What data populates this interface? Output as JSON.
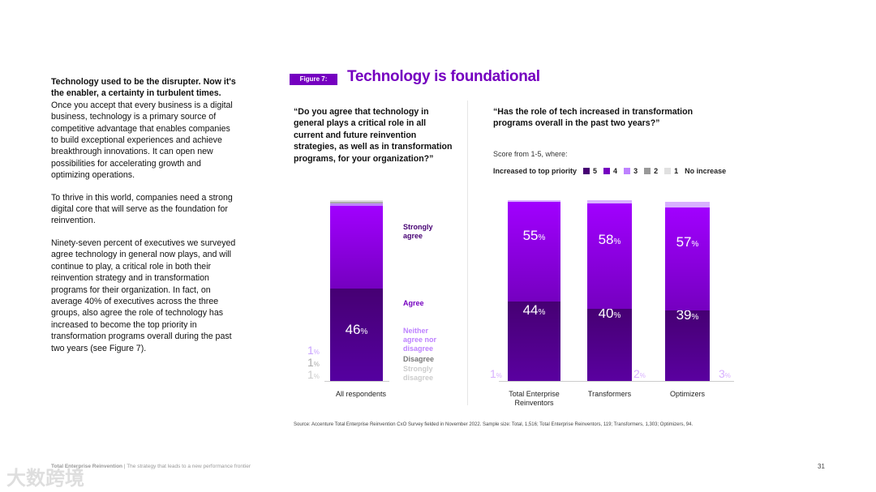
{
  "intro": {
    "lead": "Technology used to be the disrupter. Now it's the enabler, a certainty in turbulent times.",
    "p1": " Once you accept that every business is a digital business, technology is a primary source of competitive advantage that enables companies to build exceptional experiences and achieve breakthrough innovations. It can open new possibilities for accelerating growth and optimizing operations.",
    "p2": "To thrive in this world, companies need a strong digital core that will serve as the foundation for reinvention.",
    "p3": "Ninety-seven percent of executives we surveyed agree technology in general now plays, and will continue to play, a critical role in both their reinvention strategy and in transformation programs for their organization. In fact, on average 40% of executives across the three groups, also agree the role of technology has increased to become the top priority in transformation programs overall during the past two years (see Figure 7)."
  },
  "figure": {
    "tag": "Figure 7:",
    "title": "Technology is foundational"
  },
  "chart_data": [
    {
      "type": "bar",
      "stacked": true,
      "title": "“Do you agree that technology in general plays a critical role in all current and future reinvention strategies, as well as in transformation programs, for your organization?”",
      "categories": [
        "All respondents"
      ],
      "series": [
        {
          "name": "Strongly agree",
          "values": [
            51
          ],
          "color": "#460073"
        },
        {
          "name": "Agree",
          "values": [
            46
          ],
          "color": "#7500c0"
        },
        {
          "name": "Neither agree nor disagree",
          "values": [
            1
          ],
          "color": "#be82ff"
        },
        {
          "name": "Disagree",
          "values": [
            1
          ],
          "color": "#999999"
        },
        {
          "name": "Strongly disagree",
          "values": [
            1
          ],
          "color": "#d0d0d0"
        }
      ],
      "labels": {
        "main": [
          "51",
          "46"
        ],
        "side": [
          "1",
          "1",
          "1"
        ]
      },
      "pct": "%"
    },
    {
      "type": "bar",
      "stacked": true,
      "title": "“Has the role of tech increased in transformation programs overall in the past two years?”",
      "subtitle": "Score from 1-5, where:",
      "legend_title": "Increased to top priority",
      "legend": [
        {
          "name": "5",
          "color": "#460073"
        },
        {
          "name": "4",
          "color": "#7500c0"
        },
        {
          "name": "3",
          "color": "#be82ff"
        },
        {
          "name": "2",
          "color": "#999999"
        },
        {
          "name": "1",
          "color": "#e0e0e0"
        }
      ],
      "legend_end": "No increase",
      "categories": [
        "Total Enterprise Reinventors",
        "Transformers",
        "Optimizers"
      ],
      "series": [
        {
          "name": "5",
          "values": [
            44,
            40,
            39
          ]
        },
        {
          "name": "4",
          "values": [
            55,
            58,
            57
          ]
        },
        {
          "name": "3",
          "values": [
            1,
            2,
            3
          ]
        }
      ],
      "pct": "%"
    }
  ],
  "source": "Source: Accenture Total Enterprise Reinvention CxO Survey fielded in November 2022. Sample size: Total, 1,516; Total Enterprise Reinventors, 119; Transformers, 1,303; Optimizers, 94.",
  "footer": {
    "brand": "Total Enterprise Reinvention",
    "sep": " | ",
    "tagline": "The strategy that leads to a new performance frontier",
    "page": "31"
  },
  "watermark": "大数跨境"
}
